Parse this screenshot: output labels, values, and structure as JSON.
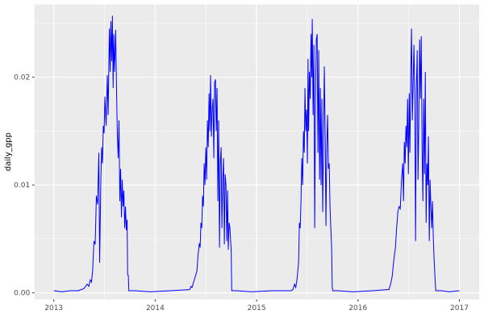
{
  "figure": {
    "kind": "ggplot-line-chart"
  },
  "colors": {
    "panel_background": "#EBEBEB",
    "outer_background": "#FFFFFF",
    "grid_major": "#FFFFFF",
    "grid_minor": "#FFFFFF",
    "line": "#0000FF",
    "tick_text": "#4D4D4D",
    "tick_mark": "#333333",
    "axis_title": "#000000"
  },
  "chart_data": {
    "type": "line",
    "title": "",
    "xlabel": "",
    "ylabel": "daily_gpp",
    "legend": "none",
    "grid": "on",
    "xlim": [
      2012.809,
      2017.195
    ],
    "ylim": [
      -0.00061,
      0.02675
    ],
    "x_ticks": [
      {
        "value": 2013,
        "label": "2013"
      },
      {
        "value": 2014,
        "label": "2014"
      },
      {
        "value": 2015,
        "label": "2015"
      },
      {
        "value": 2016,
        "label": "2016"
      },
      {
        "value": 2017,
        "label": "2017"
      }
    ],
    "y_ticks": [
      {
        "value": 0.0,
        "label": "0.00"
      },
      {
        "value": 0.01,
        "label": "0.01"
      },
      {
        "value": 0.02,
        "label": "0.02"
      }
    ],
    "x_minor": [
      2013.5,
      2014.5,
      2015.5,
      2016.5
    ],
    "y_minor": [
      0.005,
      0.015,
      0.025
    ],
    "series": [
      {
        "name": "daily_gpp",
        "color": "#0000FF",
        "points": [
          [
            2013.0,
            0.0002
          ],
          [
            2013.082,
            0.0001
          ],
          [
            2013.161,
            0.0002
          ],
          [
            2013.241,
            0.0002
          ],
          [
            2013.297,
            0.0004
          ],
          [
            2013.329,
            0.0008
          ],
          [
            2013.345,
            0.0006
          ],
          [
            2013.36,
            0.0012
          ],
          [
            2013.372,
            0.001
          ],
          [
            2013.384,
            0.0022
          ],
          [
            2013.396,
            0.0048
          ],
          [
            2013.408,
            0.0045
          ],
          [
            2013.42,
            0.009
          ],
          [
            2013.432,
            0.0082
          ],
          [
            2013.444,
            0.013
          ],
          [
            2013.452,
            0.0028
          ],
          [
            2013.464,
            0.0105
          ],
          [
            2013.472,
            0.0135
          ],
          [
            2013.48,
            0.012
          ],
          [
            2013.488,
            0.0155
          ],
          [
            2013.496,
            0.0148
          ],
          [
            2013.504,
            0.0182
          ],
          [
            2013.516,
            0.0155
          ],
          [
            2013.528,
            0.0202
          ],
          [
            2013.536,
            0.0165
          ],
          [
            2013.548,
            0.0245
          ],
          [
            2013.556,
            0.0205
          ],
          [
            2013.563,
            0.0252
          ],
          [
            2013.571,
            0.0215
          ],
          [
            2013.578,
            0.0257
          ],
          [
            2013.585,
            0.019
          ],
          [
            2013.591,
            0.024
          ],
          [
            2013.599,
            0.0205
          ],
          [
            2013.61,
            0.0244
          ],
          [
            2013.619,
            0.0186
          ],
          [
            2013.627,
            0.0145
          ],
          [
            2013.635,
            0.0125
          ],
          [
            2013.643,
            0.016
          ],
          [
            2013.651,
            0.0085
          ],
          [
            2013.659,
            0.0115
          ],
          [
            2013.667,
            0.007
          ],
          [
            2013.675,
            0.0105
          ],
          [
            2013.683,
            0.008
          ],
          [
            2013.691,
            0.0095
          ],
          [
            2013.699,
            0.006
          ],
          [
            2013.707,
            0.008
          ],
          [
            2013.715,
            0.0058
          ],
          [
            2013.723,
            0.0068
          ],
          [
            2013.728,
            0.0017
          ],
          [
            2013.735,
            0.0016
          ],
          [
            2013.74,
            0.0002
          ],
          [
            2013.8,
            0.0002
          ],
          [
            2013.95,
            0.0001
          ],
          [
            2014.15,
            0.0002
          ],
          [
            2014.34,
            0.0003
          ],
          [
            2014.353,
            0.0006
          ],
          [
            2014.363,
            0.0005
          ],
          [
            2014.379,
            0.001
          ],
          [
            2014.395,
            0.0015
          ],
          [
            2014.411,
            0.002
          ],
          [
            2014.423,
            0.0035
          ],
          [
            2014.435,
            0.0046
          ],
          [
            2014.443,
            0.0042
          ],
          [
            2014.451,
            0.0065
          ],
          [
            2014.459,
            0.006
          ],
          [
            2014.467,
            0.009
          ],
          [
            2014.475,
            0.008
          ],
          [
            2014.483,
            0.012
          ],
          [
            2014.491,
            0.01
          ],
          [
            2014.499,
            0.0135
          ],
          [
            2014.507,
            0.0105
          ],
          [
            2014.515,
            0.016
          ],
          [
            2014.523,
            0.0135
          ],
          [
            2014.531,
            0.0185
          ],
          [
            2014.538,
            0.015
          ],
          [
            2014.546,
            0.0202
          ],
          [
            2014.554,
            0.0145
          ],
          [
            2014.562,
            0.017
          ],
          [
            2014.57,
            0.018
          ],
          [
            2014.578,
            0.0125
          ],
          [
            2014.586,
            0.0195
          ],
          [
            2014.594,
            0.0198
          ],
          [
            2014.602,
            0.015
          ],
          [
            2014.61,
            0.019
          ],
          [
            2014.618,
            0.0085
          ],
          [
            2014.626,
            0.016
          ],
          [
            2014.634,
            0.0042
          ],
          [
            2014.642,
            0.012
          ],
          [
            2014.65,
            0.0135
          ],
          [
            2014.658,
            0.006
          ],
          [
            2014.666,
            0.0105
          ],
          [
            2014.674,
            0.0125
          ],
          [
            2014.682,
            0.0045
          ],
          [
            2014.69,
            0.011
          ],
          [
            2014.698,
            0.01
          ],
          [
            2014.706,
            0.0048
          ],
          [
            2014.714,
            0.0095
          ],
          [
            2014.721,
            0.004
          ],
          [
            2014.729,
            0.0065
          ],
          [
            2014.737,
            0.006
          ],
          [
            2014.749,
            0.004
          ],
          [
            2014.755,
            0.0002
          ],
          [
            2014.8,
            0.0002
          ],
          [
            2014.95,
            0.0001
          ],
          [
            2015.15,
            0.0002
          ],
          [
            2015.34,
            0.0002
          ],
          [
            2015.358,
            0.0003
          ],
          [
            2015.374,
            0.0008
          ],
          [
            2015.386,
            0.0005
          ],
          [
            2015.398,
            0.0012
          ],
          [
            2015.414,
            0.0028
          ],
          [
            2015.422,
            0.0065
          ],
          [
            2015.43,
            0.006
          ],
          [
            2015.438,
            0.0085
          ],
          [
            2015.446,
            0.0125
          ],
          [
            2015.454,
            0.01
          ],
          [
            2015.462,
            0.015
          ],
          [
            2015.47,
            0.013
          ],
          [
            2015.477,
            0.019
          ],
          [
            2015.485,
            0.015
          ],
          [
            2015.493,
            0.017
          ],
          [
            2015.501,
            0.012
          ],
          [
            2015.507,
            0.0217
          ],
          [
            2015.513,
            0.015
          ],
          [
            2015.521,
            0.0205
          ],
          [
            2015.529,
            0.018
          ],
          [
            2015.537,
            0.024
          ],
          [
            2015.543,
            0.02
          ],
          [
            2015.549,
            0.0254
          ],
          [
            2015.557,
            0.0165
          ],
          [
            2015.565,
            0.023
          ],
          [
            2015.573,
            0.006
          ],
          [
            2015.581,
            0.018
          ],
          [
            2015.589,
            0.0235
          ],
          [
            2015.597,
            0.024
          ],
          [
            2015.605,
            0.013
          ],
          [
            2015.613,
            0.0225
          ],
          [
            2015.621,
            0.0105
          ],
          [
            2015.629,
            0.019
          ],
          [
            2015.636,
            0.01
          ],
          [
            2015.644,
            0.018
          ],
          [
            2015.652,
            0.0075
          ],
          [
            2015.66,
            0.014
          ],
          [
            2015.668,
            0.021
          ],
          [
            2015.676,
            0.015
          ],
          [
            2015.684,
            0.0062
          ],
          [
            2015.692,
            0.0135
          ],
          [
            2015.7,
            0.0165
          ],
          [
            2015.708,
            0.0115
          ],
          [
            2015.716,
            0.012
          ],
          [
            2015.724,
            0.008
          ],
          [
            2015.732,
            0.006
          ],
          [
            2015.74,
            0.0042
          ],
          [
            2015.746,
            0.0005
          ],
          [
            2015.752,
            0.0002
          ],
          [
            2015.8,
            0.0002
          ],
          [
            2015.95,
            0.0001
          ],
          [
            2016.15,
            0.0002
          ],
          [
            2016.29,
            0.0003
          ],
          [
            2016.305,
            0.0003
          ],
          [
            2016.321,
            0.0008
          ],
          [
            2016.337,
            0.0015
          ],
          [
            2016.353,
            0.003
          ],
          [
            2016.369,
            0.0042
          ],
          [
            2016.381,
            0.006
          ],
          [
            2016.393,
            0.0075
          ],
          [
            2016.405,
            0.008
          ],
          [
            2016.417,
            0.0078
          ],
          [
            2016.429,
            0.0105
          ],
          [
            2016.441,
            0.012
          ],
          [
            2016.449,
            0.0085
          ],
          [
            2016.457,
            0.014
          ],
          [
            2016.465,
            0.012
          ],
          [
            2016.473,
            0.0155
          ],
          [
            2016.481,
            0.0135
          ],
          [
            2016.489,
            0.018
          ],
          [
            2016.497,
            0.011
          ],
          [
            2016.505,
            0.0185
          ],
          [
            2016.512,
            0.013
          ],
          [
            2016.52,
            0.0202
          ],
          [
            2016.528,
            0.0245
          ],
          [
            2016.536,
            0.016
          ],
          [
            2016.544,
            0.0195
          ],
          [
            2016.552,
            0.023
          ],
          [
            2016.56,
            0.018
          ],
          [
            2016.568,
            0.0048
          ],
          [
            2016.576,
            0.019
          ],
          [
            2016.584,
            0.0225
          ],
          [
            2016.592,
            0.0105
          ],
          [
            2016.6,
            0.016
          ],
          [
            2016.608,
            0.0235
          ],
          [
            2016.616,
            0.018
          ],
          [
            2016.624,
            0.0238
          ],
          [
            2016.632,
            0.0135
          ],
          [
            2016.64,
            0.0085
          ],
          [
            2016.648,
            0.018
          ],
          [
            2016.656,
            0.011
          ],
          [
            2016.664,
            0.0205
          ],
          [
            2016.672,
            0.0065
          ],
          [
            2016.68,
            0.012
          ],
          [
            2016.688,
            0.01
          ],
          [
            2016.695,
            0.0145
          ],
          [
            2016.703,
            0.0048
          ],
          [
            2016.711,
            0.0105
          ],
          [
            2016.719,
            0.008
          ],
          [
            2016.727,
            0.006
          ],
          [
            2016.735,
            0.0085
          ],
          [
            2016.743,
            0.005
          ],
          [
            2016.751,
            0.003
          ],
          [
            2016.759,
            0.0015
          ],
          [
            2016.767,
            0.0002
          ],
          [
            2016.82,
            0.0002
          ],
          [
            2016.9,
            0.0001
          ],
          [
            2017.0,
            0.0002
          ]
        ]
      }
    ]
  }
}
